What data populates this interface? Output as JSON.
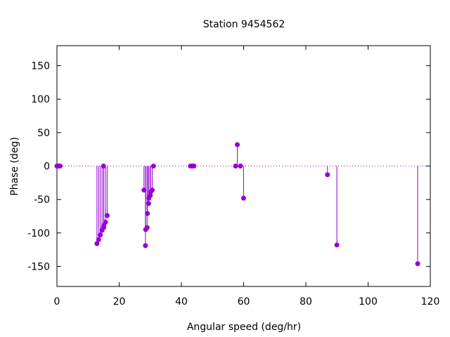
{
  "chart_data": {
    "type": "scatter",
    "style": "impulses-with-points",
    "title": "Station 9454562",
    "xlabel": "Angular speed (deg/hr)",
    "ylabel": "Phase (deg)",
    "xlim": [
      0,
      120
    ],
    "ylim": [
      -180,
      180
    ],
    "xticks": [
      0,
      20,
      40,
      60,
      80,
      100,
      120
    ],
    "yticks": [
      -150,
      -100,
      -50,
      0,
      50,
      100,
      150
    ],
    "zero_line": true,
    "grid": false,
    "color": "#9400d3",
    "series": [
      {
        "x": [
          0.0,
          0.04,
          0.08,
          0.5,
          1.0,
          12.85,
          13.4,
          13.94,
          14.5,
          14.96,
          15.0,
          15.04,
          15.6,
          16.14,
          27.97,
          28.44,
          28.51,
          28.98,
          29.08,
          29.46,
          29.53,
          30.0,
          30.08,
          30.63,
          31.02,
          42.93,
          43.48,
          44.03,
          57.42,
          57.97,
          58.98,
          59.98,
          86.95,
          89.96,
          115.94
        ],
        "y": [
          0,
          0,
          0,
          0,
          0,
          -116,
          -110,
          -103,
          -96,
          0,
          -92,
          -89,
          -84,
          -74,
          -36,
          -119,
          -95,
          -92,
          -71,
          -56,
          -48,
          -44,
          -39,
          -36,
          0,
          0,
          0,
          0,
          0,
          32,
          0,
          -48,
          -13,
          -118,
          -146
        ]
      }
    ]
  }
}
